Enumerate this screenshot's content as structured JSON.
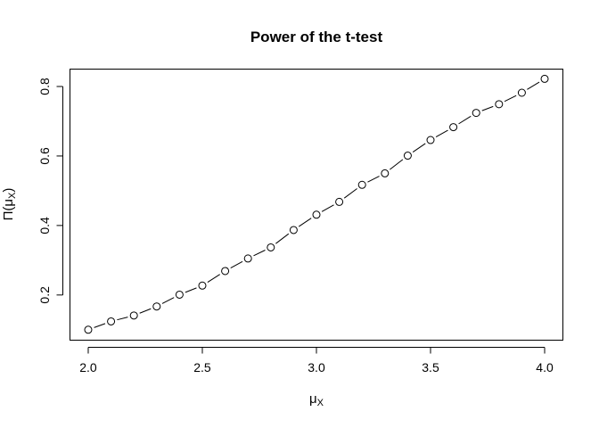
{
  "chart_data": {
    "type": "line",
    "title": "Power of the t-test",
    "xlabel": {
      "main": "μ",
      "sub": "X"
    },
    "ylabel": {
      "prefix": "Π(μ",
      "sub": "X",
      "suffix": ")"
    },
    "xlim": [
      1.92,
      4.08
    ],
    "ylim": [
      0.07,
      0.85
    ],
    "xticks": [
      2.0,
      2.5,
      3.0,
      3.5,
      4.0
    ],
    "xtick_labels": [
      "2.0",
      "2.5",
      "3.0",
      "3.5",
      "4.0"
    ],
    "yticks": [
      0.2,
      0.4,
      0.6,
      0.8
    ],
    "ytick_labels": [
      "0.2",
      "0.4",
      "0.6",
      "0.8"
    ],
    "grid": false,
    "marker": "open-circle",
    "line_style": "dashed-between-points",
    "x": [
      2.0,
      2.1,
      2.2,
      2.3,
      2.4,
      2.5,
      2.6,
      2.7,
      2.8,
      2.9,
      3.0,
      3.1,
      3.2,
      3.3,
      3.4,
      3.5,
      3.6,
      3.7,
      3.8,
      3.9,
      4.0
    ],
    "y": [
      0.1,
      0.124,
      0.141,
      0.167,
      0.201,
      0.227,
      0.269,
      0.305,
      0.337,
      0.387,
      0.431,
      0.468,
      0.517,
      0.55,
      0.601,
      0.646,
      0.683,
      0.724,
      0.749,
      0.782,
      0.822
    ]
  }
}
